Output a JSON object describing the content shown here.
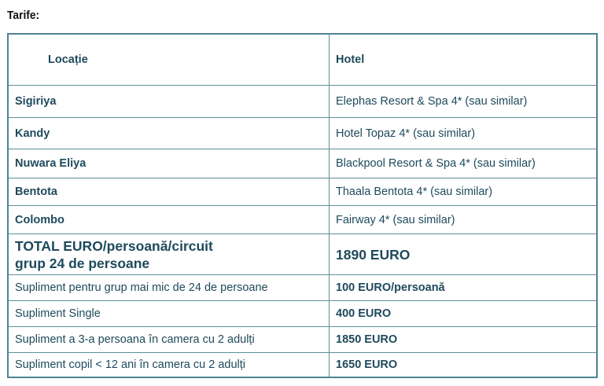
{
  "title": "Tarife:",
  "header": {
    "location": "Locație",
    "hotel": "Hotel"
  },
  "hotels": [
    {
      "location": "Sigiriya",
      "hotel": "Elephas Resort & Spa 4* (sau similar)"
    },
    {
      "location": "Kandy",
      "hotel": "Hotel Topaz 4* (sau similar)"
    },
    {
      "location": "Nuwara Eliya",
      "hotel": "Blackpool Resort & Spa 4* (sau similar)"
    },
    {
      "location": "Bentota",
      "hotel": "Thaala Bentota 4* (sau similar)"
    },
    {
      "location": "Colombo",
      "hotel": "Fairway 4* (sau similar)"
    }
  ],
  "total": {
    "label_line1": "TOTAL EURO/persoană/circuit",
    "label_line2": "grup 24 de persoane",
    "value": "1890 EURO"
  },
  "supplements": [
    {
      "label": "Supliment pentru grup mai mic de 24 de persoane",
      "value": "100 EURO/persoană"
    },
    {
      "label": "Supliment Single",
      "value": "400 EURO"
    },
    {
      "label": "Supliment a 3-a persoana în camera cu 2 adulți",
      "value": "1850 EURO"
    },
    {
      "label": "Supliment copil < 12 ani în camera cu 2 adulți",
      "value": "1650 EURO"
    }
  ]
}
